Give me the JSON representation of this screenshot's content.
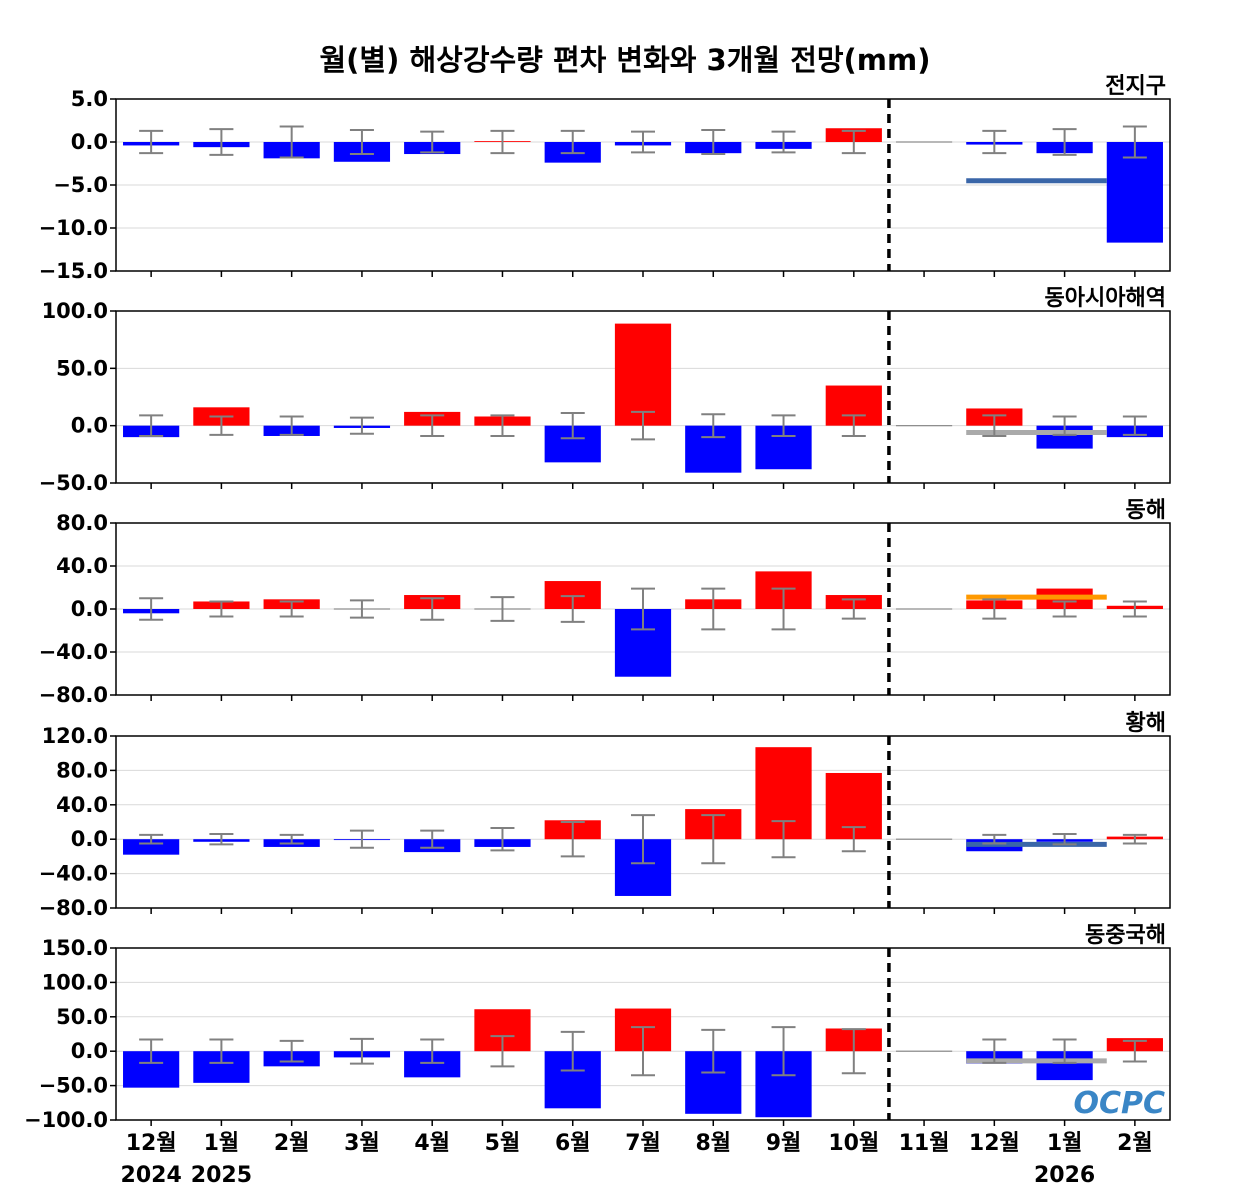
{
  "colors": {
    "positive": "#ff0000",
    "negative": "#0000ff",
    "error_bar": "#808080",
    "grid": "#d9d9d9",
    "divider": "#000000",
    "logo": "#3a86c6"
  },
  "logo_text": "OCPC",
  "chart_data": {
    "type": "bar",
    "title": "월(별) 해상강수량 편차 변화와 3개월 전망(mm)",
    "categories": [
      "12월",
      "1월",
      "2월",
      "3월",
      "4월",
      "5월",
      "6월",
      "7월",
      "8월",
      "9월",
      "10월",
      "11월",
      "12월",
      "1월",
      "2월"
    ],
    "year_labels": [
      {
        "label": "2024",
        "category_index": 0
      },
      {
        "label": "2025",
        "category_index": 1
      },
      {
        "label": "2026",
        "category_index": 13
      }
    ],
    "divider_after_index": 11,
    "grid": true,
    "panels": [
      {
        "name": "전지구",
        "ylim": [
          -15,
          5
        ],
        "yticks": [
          5,
          0,
          -5,
          -10,
          -15
        ],
        "ytick_labels": [
          "5.0",
          "0.0",
          "−5.0",
          "−10.0",
          "−15.0"
        ],
        "values": [
          -0.4,
          -0.6,
          -1.9,
          -2.3,
          -1.4,
          0.1,
          -2.4,
          -0.4,
          -1.3,
          -0.8,
          1.6,
          0.0,
          -0.3,
          -1.3,
          -11.7
        ],
        "error": [
          1.3,
          1.5,
          1.8,
          1.4,
          1.2,
          1.3,
          1.3,
          1.2,
          1.4,
          1.2,
          1.3,
          null,
          1.3,
          1.5,
          1.8
        ],
        "outlook": {
          "value": -4.5,
          "color": "#3a66a8"
        }
      },
      {
        "name": "동아시아해역",
        "ylim": [
          -50,
          100
        ],
        "yticks": [
          100,
          50,
          0,
          -50
        ],
        "ytick_labels": [
          "100.0",
          "50.0",
          "0.0",
          "−50.0"
        ],
        "values": [
          -10,
          16,
          -9,
          -2,
          12,
          8,
          -32,
          89,
          -41,
          -38,
          35,
          0,
          15,
          -20,
          -10
        ],
        "error": [
          9,
          8,
          8,
          7,
          9,
          9,
          11,
          12,
          10,
          9,
          9,
          null,
          9,
          8,
          8
        ],
        "outlook": {
          "value": -6,
          "color": "#aaaaaa"
        }
      },
      {
        "name": "동해",
        "ylim": [
          -80,
          80
        ],
        "yticks": [
          80,
          40,
          0,
          -40,
          -80
        ],
        "ytick_labels": [
          "80.0",
          "40.0",
          "0.0",
          "−40.0",
          "−80.0"
        ],
        "values": [
          -4,
          7,
          9,
          0,
          13,
          0,
          26,
          -63,
          9,
          35,
          13,
          0,
          8,
          19,
          3
        ],
        "error": [
          10,
          7,
          7,
          8,
          10,
          11,
          12,
          19,
          19,
          19,
          9,
          null,
          9,
          7,
          7
        ],
        "outlook": {
          "value": 11,
          "color": "#ff9900"
        }
      },
      {
        "name": "황해",
        "ylim": [
          -80,
          120
        ],
        "yticks": [
          120,
          80,
          40,
          0,
          -40,
          -80
        ],
        "ytick_labels": [
          "120.0",
          "80.0",
          "40.0",
          "0.0",
          "−40.0",
          "−80.0"
        ],
        "values": [
          -18,
          -3,
          -9,
          -1,
          -15,
          -9,
          22,
          -66,
          35,
          107,
          77,
          0,
          -14,
          -3,
          3
        ],
        "error": [
          5,
          6,
          5,
          10,
          10,
          13,
          20,
          28,
          28,
          21,
          14,
          null,
          5,
          6,
          5
        ],
        "outlook": {
          "value": -6,
          "color": "#3a66a8"
        }
      },
      {
        "name": "동중국해",
        "ylim": [
          -100,
          150
        ],
        "yticks": [
          150,
          100,
          50,
          0,
          -50,
          -100
        ],
        "ytick_labels": [
          "150.0",
          "100.0",
          "50.0",
          "0.0",
          "−50.0",
          "−100.0"
        ],
        "values": [
          -53,
          -46,
          -22,
          -9,
          -38,
          61,
          -83,
          62,
          -91,
          -96,
          33,
          0,
          -18,
          -42,
          19
        ],
        "error": [
          17,
          17,
          15,
          18,
          17,
          22,
          28,
          35,
          31,
          35,
          32,
          null,
          17,
          17,
          15
        ],
        "outlook": {
          "value": -14,
          "color": "#aaaaaa"
        }
      }
    ]
  }
}
